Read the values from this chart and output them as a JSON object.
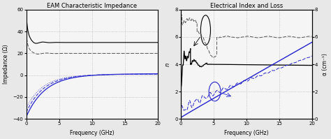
{
  "left_title": "EAM Characteristic Impedance",
  "left_xlabel": "Frequency (GHz)",
  "left_ylabel": "Impedance (Ω)",
  "left_xlim": [
    0,
    20
  ],
  "left_ylim": [
    -40,
    60
  ],
  "left_yticks": [
    -40,
    -20,
    0,
    20,
    40,
    60
  ],
  "left_xticks": [
    0,
    5,
    10,
    15,
    20
  ],
  "right_title": "Electrical Index and Loss",
  "right_xlabel": "Frequency (GHz)",
  "right_ylabel_left": "n",
  "right_ylabel_right": "α (cm⁻¹)",
  "right_xlim": [
    0,
    20
  ],
  "right_ylim": [
    0,
    8
  ],
  "right_yticks": [
    0,
    2,
    4,
    6,
    8
  ],
  "right_xticks": [
    0,
    5,
    10,
    15,
    20
  ]
}
